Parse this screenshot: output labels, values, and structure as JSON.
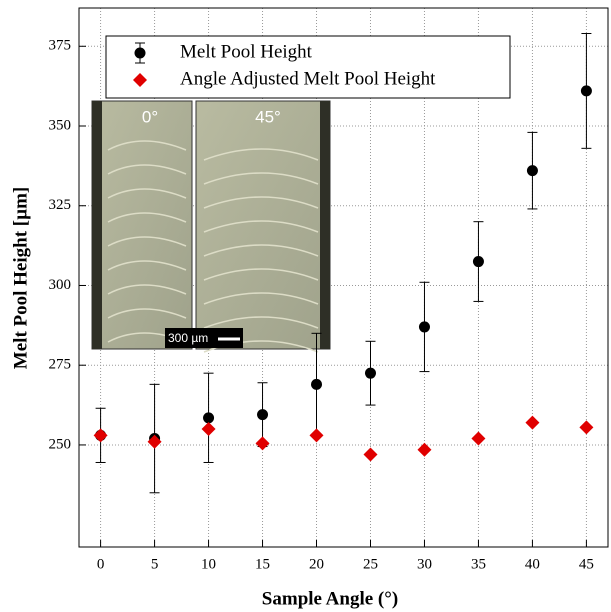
{
  "chart_data": {
    "type": "scatter",
    "x_label": "Sample Angle (°)",
    "y_label": "Melt Pool Height [µm]",
    "x": [
      0,
      5,
      10,
      15,
      20,
      25,
      30,
      35,
      40,
      45
    ],
    "series": [
      {
        "name": "Melt Pool Height",
        "color": "#000000",
        "marker": "circle",
        "values": [
          253,
          252,
          258.5,
          259.5,
          269,
          272.5,
          287,
          307.5,
          336,
          361
        ],
        "errors": [
          8.5,
          17,
          14,
          10,
          16,
          10,
          14,
          12.5,
          12,
          18
        ]
      },
      {
        "name": "Angle Adjusted Melt Pool Height",
        "color": "#e00000",
        "marker": "diamond",
        "values": [
          253,
          251,
          255,
          250.5,
          253,
          247,
          248.5,
          252,
          257,
          255.5
        ]
      }
    ],
    "xlim": [
      -2,
      47
    ],
    "xticks": [
      0,
      5,
      10,
      15,
      20,
      25,
      30,
      35,
      40,
      45
    ],
    "ylim": [
      218,
      387
    ],
    "yticks": [
      250,
      275,
      300,
      325,
      350,
      375
    ],
    "grid": true,
    "legend": "upper left",
    "inset": {
      "labels": [
        "0°",
        "45°"
      ],
      "scale_bar": "300 µm"
    }
  }
}
